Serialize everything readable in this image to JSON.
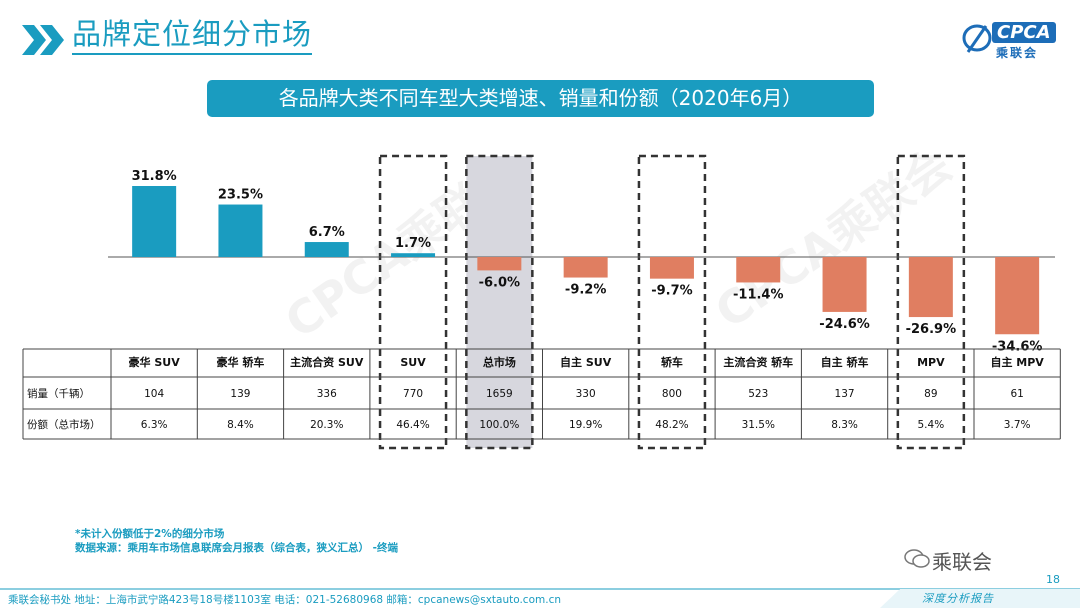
{
  "header": {
    "title": "品牌定位细分市场",
    "logo_text": "CPCA",
    "logo_sub": "乘联会"
  },
  "banner": {
    "text": "各品牌大类不同车型大类增速、销量和份额（2020年6月）"
  },
  "colors": {
    "positive": "#1a9cc0",
    "negative": "#e07e61",
    "accent": "#1a9cc0",
    "highlight_fill": "#d7d7de"
  },
  "chart_data": {
    "type": "bar",
    "categories": [
      "豪华 SUV",
      "豪华 轿车",
      "主流合资 SUV",
      "SUV",
      "总市场",
      "自主 SUV",
      "轿车",
      "主流合资 轿车",
      "自主 轿车",
      "MPV",
      "自主 MPV"
    ],
    "series": [
      {
        "values": [
          31.8,
          23.5,
          6.7,
          1.7,
          -6.0,
          -9.2,
          -9.7,
          -11.4,
          -24.6,
          -26.9,
          -34.6
        ]
      }
    ],
    "value_labels": [
      "31.8%",
      "23.5%",
      "6.7%",
      "1.7%",
      "-6.0%",
      "-9.2%",
      "-9.7%",
      "-11.4%",
      "-24.6%",
      "-26.9%",
      "-34.6%"
    ],
    "highlighted": [
      "SUV",
      "总市场",
      "轿车",
      "MPV"
    ],
    "shaded": [
      "总市场"
    ],
    "ylim": [
      -40,
      35
    ]
  },
  "table": {
    "rows": [
      {
        "label": "销量（千辆）",
        "values": [
          "104",
          "139",
          "336",
          "770",
          "1659",
          "330",
          "800",
          "523",
          "137",
          "89",
          "61"
        ]
      },
      {
        "label": "份额（总市场）",
        "values": [
          "6.3%",
          "8.4%",
          "20.3%",
          "46.4%",
          "100.0%",
          "19.9%",
          "48.2%",
          "31.5%",
          "8.3%",
          "5.4%",
          "3.7%"
        ]
      }
    ]
  },
  "notes": {
    "line1": "*未计入份额低于2%的细分市场",
    "line2": "数据来源：乘用车市场信息联席会月报表（综合表，狭义汇总） -终端"
  },
  "footer": {
    "address": "乘联会秘书处   地址：上海市武宁路423号18号楼1103室   电话：021-52680968   邮箱：cpcanews@sxtauto.com.cn",
    "tagline": "深度分析报告",
    "wechat": "乘联会",
    "page": "18"
  },
  "watermark": "CPCA乘联会"
}
